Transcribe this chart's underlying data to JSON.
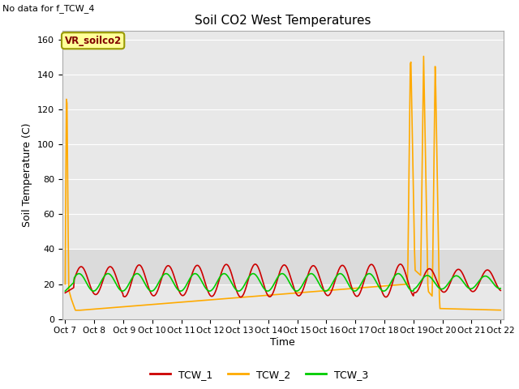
{
  "title": "Soil CO2 West Temperatures",
  "no_data_text": "No data for f_TCW_4",
  "ylabel": "Soil Temperature (C)",
  "xlabel": "Time",
  "legend_box_label": "VR_soilco2",
  "ylim": [
    0,
    165
  ],
  "xlim": [
    -0.1,
    15.1
  ],
  "background_color": "#e8e8e8",
  "band_color": "#d8d8d8",
  "figure_background": "#ffffff",
  "grid_color": "#ffffff",
  "x_tick_labels": [
    "Oct 7",
    "Oct 8",
    " Oct 9",
    "Oct 10",
    "Oct 11",
    "Oct 12",
    "Oct 13",
    "Oct 14",
    "Oct 15",
    "Oct 16",
    "Oct 17",
    "Oct 18",
    "Oct 19",
    "Oct 20",
    "Oct 21",
    "Oct 22"
  ],
  "series": {
    "TCW_1": {
      "color": "#cc0000",
      "lw": 1.2
    },
    "TCW_2": {
      "color": "#ffaa00",
      "lw": 1.2
    },
    "TCW_3": {
      "color": "#00cc00",
      "lw": 1.2
    }
  }
}
